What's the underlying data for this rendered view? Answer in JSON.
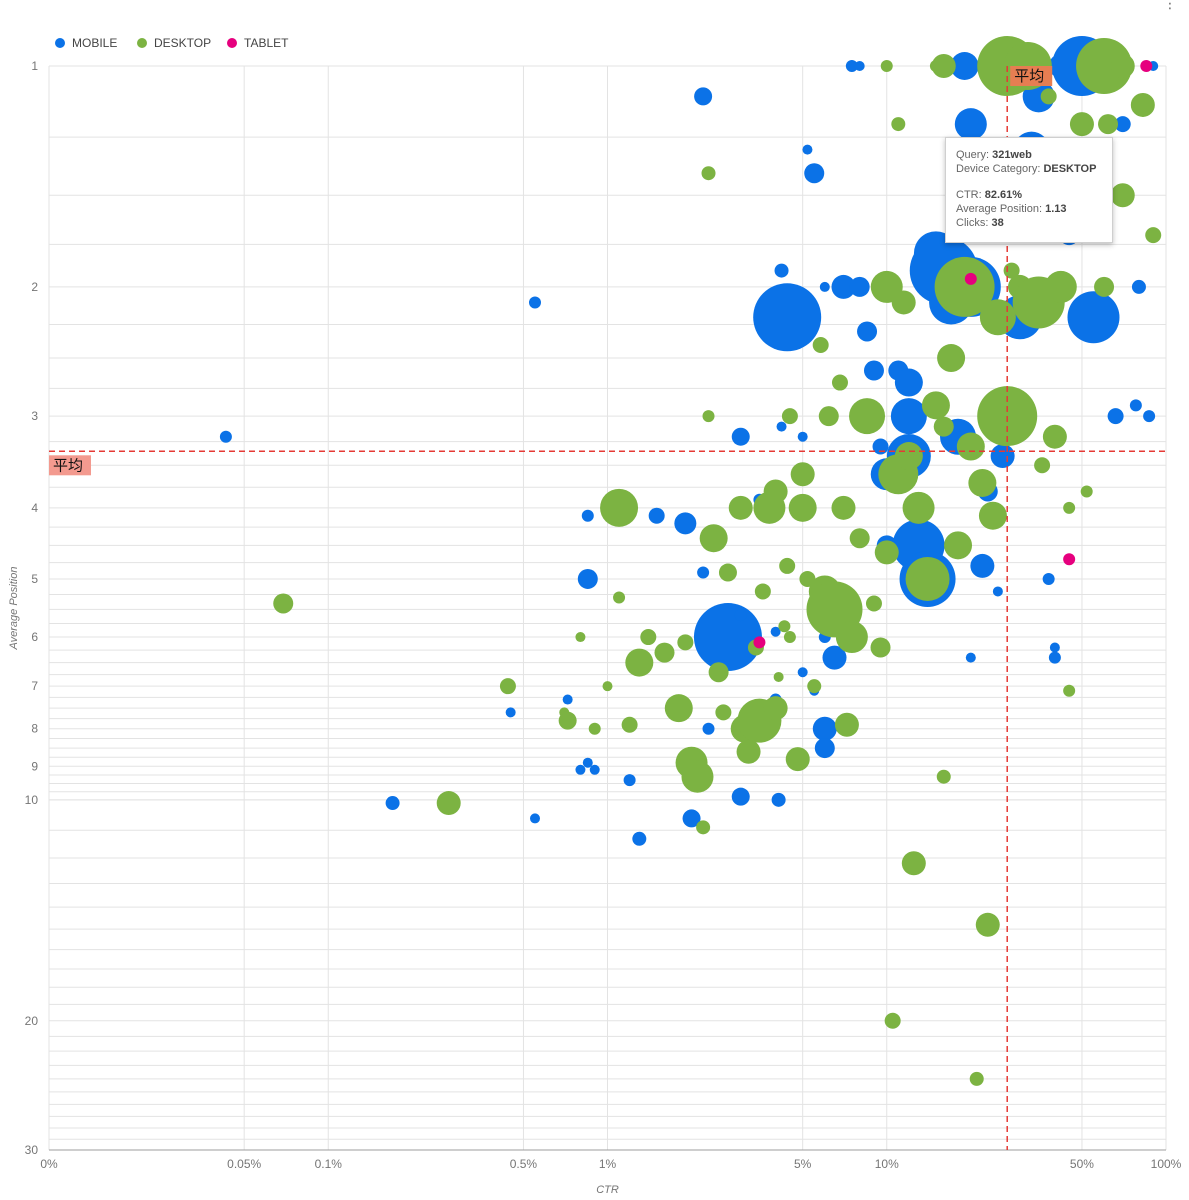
{
  "menu": {
    "icon": "more-vert-icon",
    "glyph": "⋮"
  },
  "legend": [
    {
      "name": "MOBILE",
      "color": "#0b72e7"
    },
    {
      "name": "DESKTOP",
      "color": "#7cb342"
    },
    {
      "name": "TABLET",
      "color": "#e6007e"
    }
  ],
  "avg_label": "平均",
  "tooltip": {
    "query_label": "Query:",
    "query_value": "321web",
    "device_label": "Device Category:",
    "device_value": "DESKTOP",
    "ctr_label": "CTR:",
    "ctr_value": "82.61%",
    "pos_label": "Average Position:",
    "pos_value": "1.13",
    "clicks_label": "Clicks:",
    "clicks_value": "38"
  },
  "chart_data": {
    "type": "scatter",
    "subtype": "bubble",
    "xlabel": "CTR",
    "ylabel": "Average Position",
    "x_scale": "log",
    "y_scale": "log",
    "x_ticks": [
      "0%",
      "0.05%",
      "0.1%",
      "0.5%",
      "1%",
      "5%",
      "10%",
      "50%",
      "100%"
    ],
    "y_ticks": [
      "1",
      "2",
      "3",
      "4",
      "5",
      "6",
      "7",
      "8",
      "9",
      "10",
      "20",
      "30"
    ],
    "xlim": [
      0,
      1.0
    ],
    "ylim": [
      1,
      30
    ],
    "grid": true,
    "legend_position": "top-left",
    "averages": {
      "ctr": 0.27,
      "position": 3.35
    },
    "series": [
      {
        "name": "MOBILE",
        "color": "#0b72e7",
        "points": [
          [
            0.00043,
            3.2,
            6
          ],
          [
            0.0017,
            10.1,
            7
          ],
          [
            0.0045,
            7.6,
            5
          ],
          [
            0.0055,
            2.1,
            6
          ],
          [
            0.0055,
            10.6,
            5
          ],
          [
            0.0072,
            7.3,
            5
          ],
          [
            0.0085,
            4.1,
            6
          ],
          [
            0.0085,
            5.0,
            10
          ],
          [
            0.008,
            9.1,
            5
          ],
          [
            0.0085,
            8.9,
            5
          ],
          [
            0.009,
            9.1,
            5
          ],
          [
            0.012,
            9.4,
            6
          ],
          [
            0.013,
            11.3,
            7
          ],
          [
            0.015,
            4.1,
            8
          ],
          [
            0.019,
            4.2,
            11
          ],
          [
            0.02,
            10.6,
            9
          ],
          [
            0.022,
            1.1,
            9
          ],
          [
            0.022,
            4.9,
            6
          ],
          [
            0.023,
            8.0,
            6
          ],
          [
            0.027,
            6.0,
            34
          ],
          [
            0.03,
            3.2,
            9
          ],
          [
            0.03,
            9.9,
            9
          ],
          [
            0.03,
            5.6,
            6
          ],
          [
            0.035,
            3.9,
            6
          ],
          [
            0.04,
            5.9,
            5
          ],
          [
            0.04,
            7.3,
            6
          ],
          [
            0.041,
            10.0,
            7
          ],
          [
            0.042,
            1.9,
            7
          ],
          [
            0.042,
            3.1,
            5
          ],
          [
            0.044,
            2.2,
            34
          ],
          [
            0.05,
            6.7,
            5
          ],
          [
            0.052,
            1.3,
            5
          ],
          [
            0.055,
            1.4,
            10
          ],
          [
            0.055,
            7.1,
            5
          ],
          [
            0.06,
            2.0,
            5
          ],
          [
            0.05,
            3.2,
            5
          ],
          [
            0.06,
            8.0,
            12
          ],
          [
            0.06,
            8.5,
            10
          ],
          [
            0.06,
            6.0,
            6
          ],
          [
            0.065,
            6.4,
            12
          ],
          [
            0.07,
            2.0,
            12
          ],
          [
            0.075,
            1.0,
            6
          ],
          [
            0.08,
            1.0,
            5
          ],
          [
            0.08,
            2.0,
            10
          ],
          [
            0.085,
            2.3,
            10
          ],
          [
            0.09,
            2.6,
            10
          ],
          [
            0.095,
            3.3,
            8
          ],
          [
            0.1,
            3.6,
            16
          ],
          [
            0.1,
            4.5,
            10
          ],
          [
            0.11,
            2.6,
            10
          ],
          [
            0.12,
            2.7,
            14
          ],
          [
            0.12,
            3.0,
            18
          ],
          [
            0.12,
            3.4,
            22
          ],
          [
            0.13,
            4.5,
            26
          ],
          [
            0.14,
            5.0,
            28
          ],
          [
            0.15,
            1.8,
            22
          ],
          [
            0.16,
            1.9,
            34
          ],
          [
            0.17,
            2.1,
            22
          ],
          [
            0.18,
            3.2,
            18
          ],
          [
            0.19,
            1.0,
            14
          ],
          [
            0.2,
            1.2,
            16
          ],
          [
            0.2,
            2.0,
            30
          ],
          [
            0.22,
            4.8,
            12
          ],
          [
            0.23,
            3.8,
            10
          ],
          [
            0.25,
            5.2,
            5
          ],
          [
            0.26,
            3.4,
            12
          ],
          [
            0.3,
            2.2,
            22
          ],
          [
            0.33,
            1.3,
            18
          ],
          [
            0.35,
            1.1,
            16
          ],
          [
            0.38,
            5.0,
            6
          ],
          [
            0.4,
            6.2,
            5
          ],
          [
            0.42,
            1.0,
            12
          ],
          [
            0.45,
            1.7,
            10
          ],
          [
            0.5,
            1.0,
            30
          ],
          [
            0.55,
            2.2,
            26
          ],
          [
            0.6,
            1.3,
            8
          ],
          [
            0.62,
            1.0,
            12
          ],
          [
            0.66,
            3.0,
            8
          ],
          [
            0.7,
            1.2,
            8
          ],
          [
            0.78,
            2.9,
            6
          ],
          [
            0.8,
            2.0,
            7
          ],
          [
            0.87,
            3.0,
            6
          ],
          [
            0.9,
            1.0,
            5
          ],
          [
            0.4,
            6.4,
            6
          ],
          [
            0.2,
            6.4,
            5
          ]
        ]
      },
      {
        "name": "DESKTOP",
        "color": "#7cb342",
        "points": [
          [
            0.00069,
            5.4,
            10
          ],
          [
            0.0044,
            7.0,
            8
          ],
          [
            0.0027,
            10.1,
            12
          ],
          [
            0.007,
            7.6,
            5
          ],
          [
            0.0072,
            7.8,
            9
          ],
          [
            0.008,
            6.0,
            5
          ],
          [
            0.009,
            8.0,
            6
          ],
          [
            0.01,
            7.0,
            5
          ],
          [
            0.011,
            4.0,
            19
          ],
          [
            0.011,
            5.3,
            6
          ],
          [
            0.012,
            7.9,
            8
          ],
          [
            0.013,
            6.5,
            14
          ],
          [
            0.014,
            6.0,
            8
          ],
          [
            0.016,
            6.3,
            10
          ],
          [
            0.018,
            7.5,
            14
          ],
          [
            0.019,
            6.1,
            8
          ],
          [
            0.02,
            8.9,
            16
          ],
          [
            0.021,
            9.3,
            16
          ],
          [
            0.022,
            10.9,
            7
          ],
          [
            0.023,
            1.4,
            7
          ],
          [
            0.023,
            3.0,
            6
          ],
          [
            0.024,
            4.4,
            14
          ],
          [
            0.025,
            6.7,
            10
          ],
          [
            0.026,
            7.6,
            8
          ],
          [
            0.027,
            4.9,
            9
          ],
          [
            0.03,
            4.0,
            12
          ],
          [
            0.031,
            8.0,
            14
          ],
          [
            0.032,
            8.6,
            12
          ],
          [
            0.034,
            6.2,
            8
          ],
          [
            0.035,
            7.8,
            22
          ],
          [
            0.036,
            5.2,
            8
          ],
          [
            0.038,
            4.0,
            16
          ],
          [
            0.04,
            3.8,
            12
          ],
          [
            0.04,
            7.5,
            12
          ],
          [
            0.041,
            6.8,
            5
          ],
          [
            0.043,
            5.8,
            6
          ],
          [
            0.044,
            4.8,
            8
          ],
          [
            0.045,
            6.0,
            6
          ],
          [
            0.045,
            3.0,
            8
          ],
          [
            0.048,
            8.8,
            12
          ],
          [
            0.05,
            4.0,
            14
          ],
          [
            0.05,
            3.6,
            12
          ],
          [
            0.052,
            5.0,
            8
          ],
          [
            0.055,
            7.0,
            7
          ],
          [
            0.058,
            2.4,
            8
          ],
          [
            0.06,
            5.2,
            16
          ],
          [
            0.062,
            3.0,
            10
          ],
          [
            0.065,
            5.5,
            28
          ],
          [
            0.068,
            2.7,
            8
          ],
          [
            0.07,
            4.0,
            12
          ],
          [
            0.072,
            7.9,
            12
          ],
          [
            0.075,
            6.0,
            16
          ],
          [
            0.08,
            4.4,
            10
          ],
          [
            0.085,
            3.0,
            18
          ],
          [
            0.09,
            5.4,
            8
          ],
          [
            0.095,
            6.2,
            10
          ],
          [
            0.1,
            1.0,
            6
          ],
          [
            0.1,
            2.0,
            16
          ],
          [
            0.1,
            4.6,
            12
          ],
          [
            0.105,
            20.0,
            8
          ],
          [
            0.11,
            1.2,
            7
          ],
          [
            0.11,
            3.6,
            20
          ],
          [
            0.115,
            2.1,
            12
          ],
          [
            0.12,
            3.4,
            14
          ],
          [
            0.125,
            12.2,
            12
          ],
          [
            0.13,
            4.0,
            16
          ],
          [
            0.14,
            5.0,
            22
          ],
          [
            0.15,
            1.0,
            6
          ],
          [
            0.15,
            2.9,
            14
          ],
          [
            0.16,
            1.0,
            12
          ],
          [
            0.16,
            3.1,
            10
          ],
          [
            0.17,
            2.5,
            14
          ],
          [
            0.18,
            4.5,
            14
          ],
          [
            0.19,
            2.0,
            30
          ],
          [
            0.2,
            3.3,
            14
          ],
          [
            0.21,
            24.0,
            7
          ],
          [
            0.22,
            3.7,
            14
          ],
          [
            0.23,
            14.8,
            12
          ],
          [
            0.24,
            4.1,
            14
          ],
          [
            0.25,
            2.2,
            18
          ],
          [
            0.27,
            1.0,
            30
          ],
          [
            0.27,
            3.0,
            30
          ],
          [
            0.28,
            1.9,
            8
          ],
          [
            0.3,
            2.0,
            12
          ],
          [
            0.32,
            1.0,
            24
          ],
          [
            0.35,
            2.1,
            26
          ],
          [
            0.36,
            3.5,
            8
          ],
          [
            0.38,
            1.1,
            8
          ],
          [
            0.4,
            3.2,
            12
          ],
          [
            0.42,
            2.0,
            16
          ],
          [
            0.45,
            4.0,
            6
          ],
          [
            0.45,
            7.1,
            6
          ],
          [
            0.5,
            1.2,
            12
          ],
          [
            0.52,
            3.8,
            6
          ],
          [
            0.56,
            1.0,
            18
          ],
          [
            0.6,
            1.0,
            28
          ],
          [
            0.62,
            1.2,
            10
          ],
          [
            0.7,
            1.5,
            12
          ],
          [
            0.7,
            1.0,
            12
          ],
          [
            0.8261,
            1.13,
            12
          ],
          [
            0.9,
            1.7,
            8
          ],
          [
            0.6,
            2.0,
            10
          ],
          [
            0.18,
            1.35,
            7
          ],
          [
            0.16,
            9.3,
            7
          ]
        ]
      },
      {
        "name": "TABLET",
        "color": "#e6007e",
        "points": [
          [
            0.035,
            6.1,
            6
          ],
          [
            0.2,
            1.95,
            6
          ],
          [
            0.45,
            4.7,
            6
          ],
          [
            0.85,
            1.0,
            6
          ]
        ]
      }
    ]
  }
}
